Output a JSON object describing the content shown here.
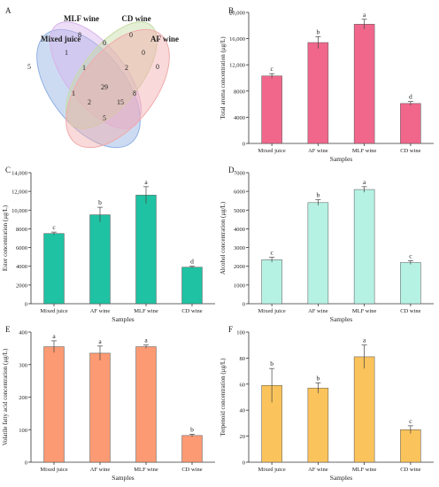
{
  "chart_data": [
    {
      "panel": "A",
      "type": "venn",
      "sets": [
        "Mixed juice",
        "MLF wine",
        "CD wine",
        "AF wine"
      ],
      "regions": [
        {
          "sets": [
            "Mixed juice"
          ],
          "value": 5
        },
        {
          "sets": [
            "MLF wine"
          ],
          "value": 8
        },
        {
          "sets": [
            "CD wine"
          ],
          "value": 0
        },
        {
          "sets": [
            "AF wine"
          ],
          "value": 0
        },
        {
          "sets": [
            "Mixed juice",
            "MLF wine"
          ],
          "value": 1
        },
        {
          "sets": [
            "MLF wine",
            "CD wine"
          ],
          "value": 0
        },
        {
          "sets": [
            "CD wine",
            "AF wine"
          ],
          "value": 0
        },
        {
          "sets": [
            "Mixed juice",
            "MLF wine",
            "CD wine"
          ],
          "value": 1
        },
        {
          "sets": [
            "MLF wine",
            "CD wine",
            "AF wine"
          ],
          "value": 2
        },
        {
          "sets": [
            "Mixed juice",
            "MLF wine",
            "CD wine",
            "AF wine"
          ],
          "value": 29
        },
        {
          "sets": [
            "Mixed juice",
            "CD wine"
          ],
          "value": 1
        },
        {
          "sets": [
            "Mixed juice",
            "CD wine",
            "AF wine"
          ],
          "value": 2
        },
        {
          "sets": [
            "MLF wine",
            "AF wine"
          ],
          "value": 8
        },
        {
          "sets": [
            "Mixed juice",
            "MLF wine",
            "AF wine"
          ],
          "value": 15
        },
        {
          "sets": [
            "Mixed juice",
            "AF wine"
          ],
          "value": 5
        }
      ],
      "colors": [
        "#8fb0e3",
        "#d7b3ea",
        "#c6dba4",
        "#f1aaaa"
      ]
    },
    {
      "panel": "B",
      "type": "bar",
      "categories": [
        "Mixed juice",
        "AF wine",
        "MLF wine",
        "CD wine"
      ],
      "values": [
        10300,
        15400,
        18200,
        6100
      ],
      "errors": [
        350,
        900,
        750,
        300
      ],
      "letters": [
        "c",
        "b",
        "a",
        "d"
      ],
      "ylabel": "Total aroma concentration (μg/L)",
      "xlabel": "Samples",
      "ylim": [
        0,
        20000
      ],
      "yticks": [
        "0",
        "4000",
        "8000",
        "12,000",
        "16,000",
        "20,000"
      ],
      "color": "#f0678b"
    },
    {
      "panel": "C",
      "type": "bar",
      "categories": [
        "Mixed juice",
        "AF wine",
        "MLF wine",
        "CD wine"
      ],
      "values": [
        7500,
        9500,
        11600,
        3900
      ],
      "errors": [
        150,
        800,
        900,
        100
      ],
      "letters": [
        "c",
        "b",
        "a",
        "d"
      ],
      "ylabel": "Ester concentration (μg/L)",
      "xlabel": "Samples",
      "ylim": [
        0,
        14000
      ],
      "yticks": [
        "0",
        "2000",
        "4000",
        "6000",
        "8000",
        "10,000",
        "12,000",
        "14,000"
      ],
      "color": "#1fc2a2"
    },
    {
      "panel": "D",
      "type": "bar",
      "categories": [
        "Mixed juice",
        "AF wine",
        "MLF wine",
        "CD wine"
      ],
      "values": [
        2350,
        5400,
        6100,
        2200
      ],
      "errors": [
        130,
        150,
        150,
        100
      ],
      "letters": [
        "c",
        "b",
        "a",
        "c"
      ],
      "ylabel": "Alcohol concentration (μg/L)",
      "xlabel": "Samples",
      "ylim": [
        0,
        7000
      ],
      "yticks": [
        "0",
        "1000",
        "2000",
        "3000",
        "4000",
        "5000",
        "6000",
        "7000"
      ],
      "color": "#b6f2e3"
    },
    {
      "panel": "E",
      "type": "bar",
      "categories": [
        "Mixed juice",
        "AF wine",
        "MLF wine",
        "CD wine"
      ],
      "values": [
        355,
        335,
        355,
        82
      ],
      "errors": [
        18,
        22,
        5,
        4
      ],
      "letters": [
        "a",
        "a",
        "a",
        "b"
      ],
      "ylabel": "Volatile fatty acid concentration (μg/L)",
      "xlabel": "Samples",
      "ylim": [
        0,
        400
      ],
      "yticks": [
        "0",
        "100",
        "200",
        "300",
        "400"
      ],
      "color": "#fb9a73"
    },
    {
      "panel": "F",
      "type": "bar",
      "categories": [
        "Mixed juice",
        "AF wine",
        "MLF wine",
        "CD wine"
      ],
      "values": [
        59,
        57,
        81,
        25
      ],
      "errors": [
        13,
        4,
        9,
        3
      ],
      "letters": [
        "b",
        "b",
        "a",
        "c"
      ],
      "ylabel": "Terpenoid concentration (μg/L)",
      "xlabel": "Samples",
      "ylim": [
        0,
        100
      ],
      "yticks": [
        "0",
        "20",
        "40",
        "60",
        "80",
        "100"
      ],
      "color": "#fbc35b"
    }
  ]
}
